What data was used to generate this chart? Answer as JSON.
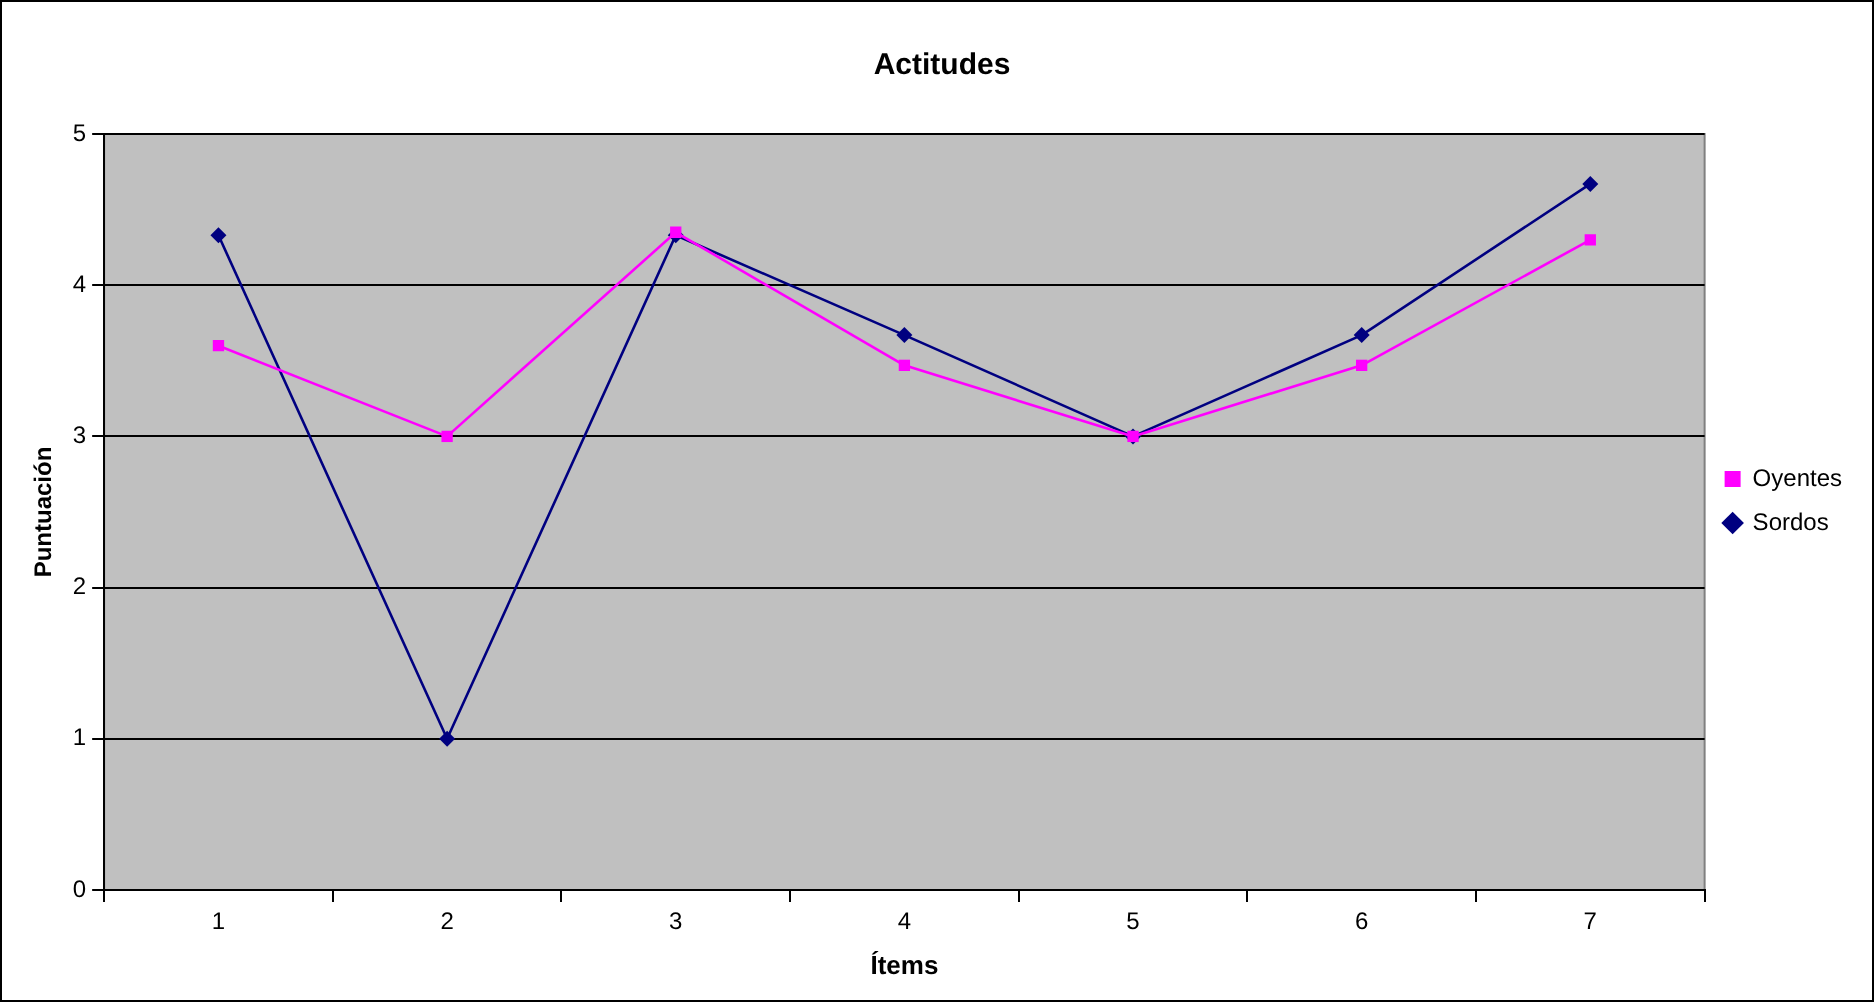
{
  "chart_data": {
    "type": "line",
    "title": "Actitudes",
    "xlabel": "Ítems",
    "ylabel": "Puntuación",
    "categories": [
      "1",
      "2",
      "3",
      "4",
      "5",
      "6",
      "7"
    ],
    "series": [
      {
        "name": "Sordos",
        "color": "#000080",
        "marker": "diamond",
        "values": [
          4.33,
          1,
          4.33,
          3.67,
          3,
          3.67,
          4.67
        ]
      },
      {
        "name": "Oyentes",
        "color": "#ff00ff",
        "marker": "square",
        "values": [
          3.6,
          3,
          4.35,
          3.47,
          3,
          3.47,
          4.3
        ]
      }
    ],
    "ylim": [
      0,
      5
    ],
    "yticks": [
      0,
      1,
      2,
      3,
      4,
      5
    ],
    "grid": "y",
    "legend": "right",
    "line_style": "solid"
  }
}
